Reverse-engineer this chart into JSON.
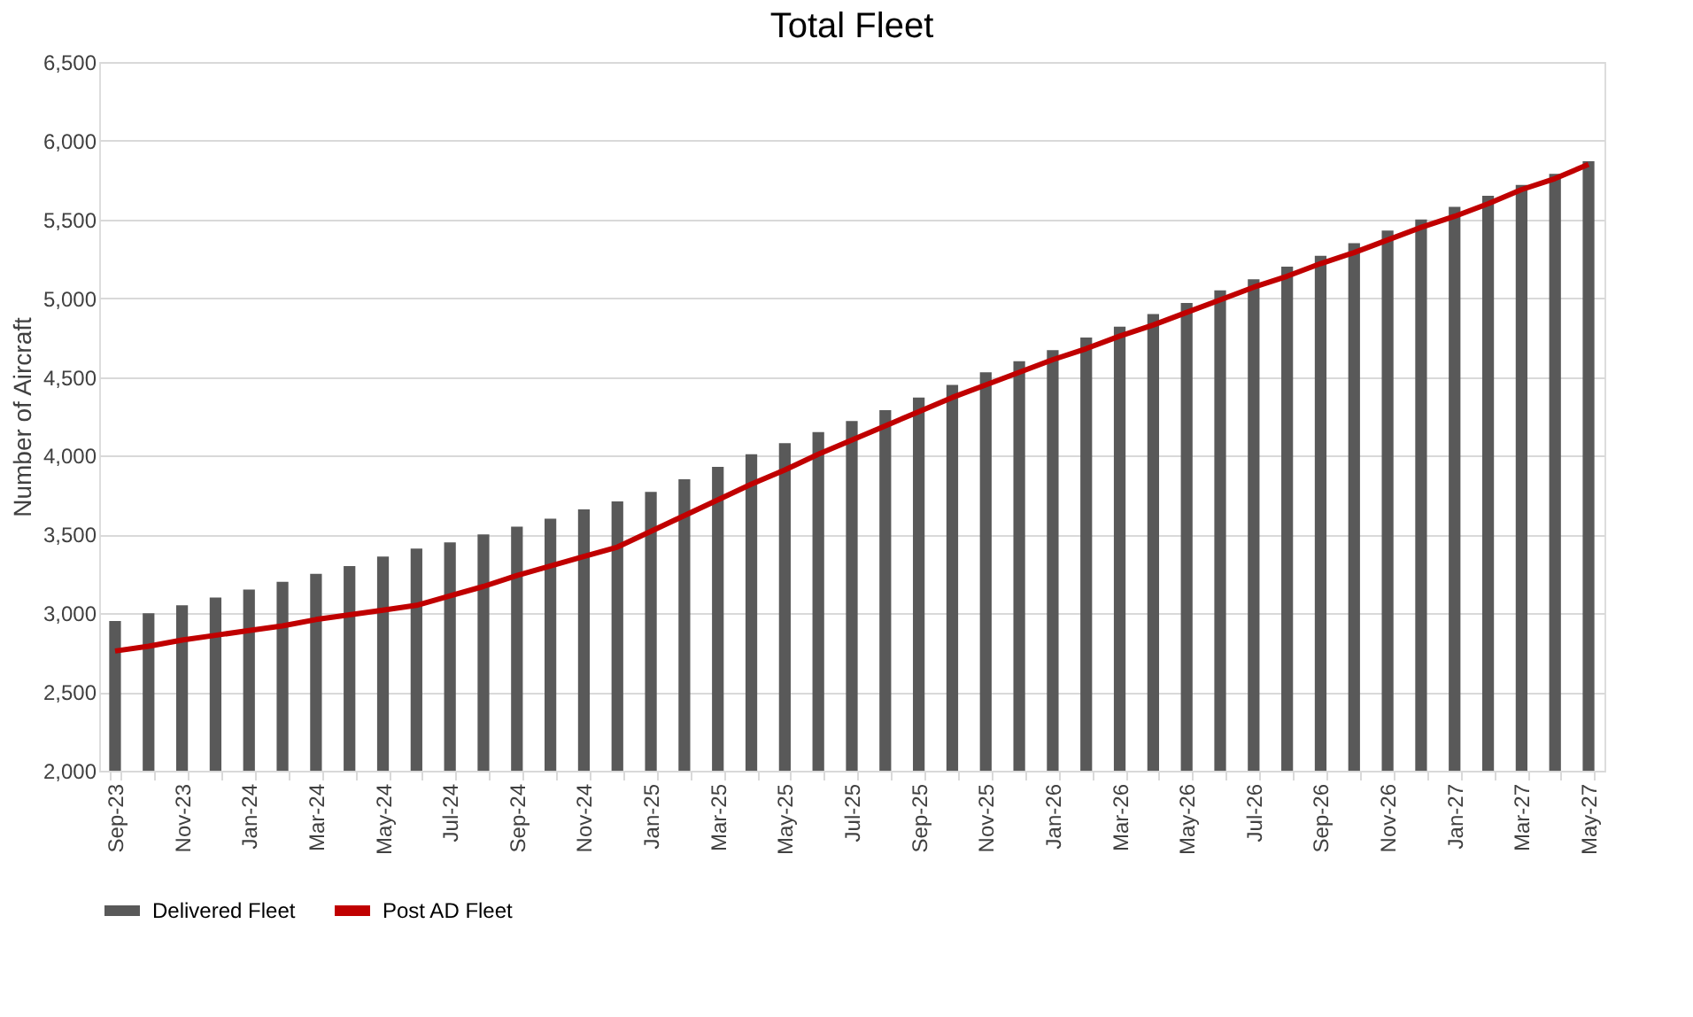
{
  "chart_data": {
    "type": "bar",
    "title": "Total Fleet",
    "ylabel": "Number of Aircraft",
    "categories": [
      "Sep-23",
      null,
      "Nov-23",
      null,
      "Jan-24",
      null,
      "Mar-24",
      null,
      "May-24",
      null,
      "Jul-24",
      null,
      "Sep-24",
      null,
      "Nov-24",
      null,
      "Jan-25",
      null,
      "Mar-25",
      null,
      "May-25",
      null,
      "Jul-25",
      null,
      "Sep-25",
      null,
      "Nov-25",
      null,
      "Jan-26",
      null,
      "Mar-26",
      null,
      "May-26",
      null,
      "Jul-26",
      null,
      "Sep-26",
      null,
      "Nov-26",
      null,
      "Jan-27",
      null,
      "Mar-27",
      null,
      "May-27"
    ],
    "series": [
      {
        "name": "Delivered Fleet",
        "color": "#595959",
        "values": [
          2950,
          3000,
          3050,
          3100,
          3150,
          3200,
          3250,
          3300,
          3360,
          3410,
          3450,
          3500,
          3550,
          3600,
          3660,
          3710,
          3770,
          3850,
          3930,
          4010,
          4080,
          4150,
          4220,
          4290,
          4370,
          4450,
          4530,
          4600,
          4670,
          4750,
          4820,
          4900,
          4970,
          5050,
          5120,
          5200,
          5270,
          5350,
          5430,
          5500,
          5580,
          5650,
          5720,
          5790,
          5870
        ]
      },
      {
        "name": "Post AD Fleet",
        "type": "line",
        "color": "#c00000",
        "values": [
          2760,
          2790,
          2830,
          2860,
          2890,
          2920,
          2960,
          2990,
          3020,
          3050,
          3110,
          3170,
          3240,
          3300,
          3360,
          3420,
          3520,
          3620,
          3720,
          3820,
          3910,
          4010,
          4100,
          4190,
          4280,
          4370,
          4450,
          4530,
          4610,
          4680,
          4760,
          4830,
          4910,
          4990,
          5070,
          5140,
          5220,
          5290,
          5370,
          5450,
          5520,
          5600,
          5690,
          5760,
          5850
        ]
      }
    ],
    "ylim": [
      2000,
      6500
    ],
    "yticks": [
      {
        "value": 2000,
        "label": "2,000"
      },
      {
        "value": 2500,
        "label": "2,500"
      },
      {
        "value": 3000,
        "label": "3,000"
      },
      {
        "value": 3500,
        "label": "3,500"
      },
      {
        "value": 4000,
        "label": "4,000"
      },
      {
        "value": 4500,
        "label": "4,500"
      },
      {
        "value": 5000,
        "label": "5,000"
      },
      {
        "value": 5500,
        "label": "5,500"
      },
      {
        "value": 6000,
        "label": "6,000"
      },
      {
        "value": 6500,
        "label": "6,500"
      }
    ],
    "grid": "y",
    "legend": "bottom",
    "line_style": "solid",
    "marker": "none"
  }
}
